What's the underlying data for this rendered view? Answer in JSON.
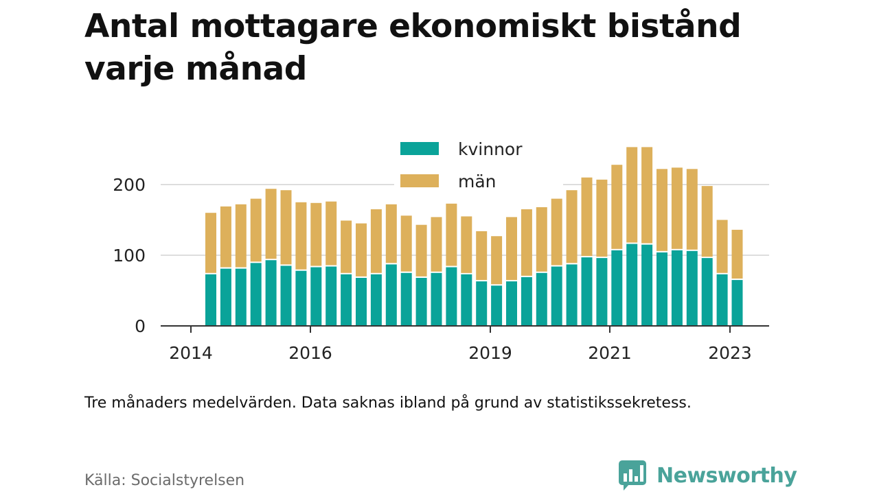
{
  "title": "Antal mottagare ekonomiskt bistånd varje månad",
  "note": "Tre månaders medelvärden. Data saknas ibland på grund av statistikssekretess.",
  "source": "Källa: Socialstyrelsen",
  "brand": {
    "name": "Newsworthy",
    "logo_icon": "bar-chart-speech-bubble-icon"
  },
  "colors": {
    "kvinnor": "#0aa399",
    "man": "#ddb05b",
    "axis": "#333333",
    "grid": "#dddddd",
    "brand": "#4aa39a"
  },
  "chart_data": {
    "type": "bar",
    "stacked": true,
    "x_tick_labels": [
      "2014",
      "2016",
      "2019",
      "2021",
      "2023"
    ],
    "y_tick_labels": [
      "0",
      "100",
      "200"
    ],
    "ylim": [
      0,
      260
    ],
    "grid": true,
    "legend_position": "top-center",
    "series": [
      {
        "name": "kvinnor",
        "values": [
          73,
          81,
          81,
          89,
          93,
          85,
          78,
          83,
          84,
          73,
          68,
          73,
          87,
          75,
          68,
          75,
          83,
          73,
          63,
          57,
          63,
          69,
          75,
          84,
          87,
          97,
          96,
          107,
          116,
          115,
          104,
          107,
          106,
          96,
          73,
          65
        ]
      },
      {
        "name": "män",
        "values": [
          87,
          88,
          91,
          91,
          101,
          107,
          97,
          91,
          92,
          76,
          77,
          92,
          85,
          81,
          75,
          79,
          90,
          82,
          71,
          70,
          91,
          96,
          93,
          96,
          105,
          113,
          111,
          121,
          137,
          138,
          118,
          117,
          116,
          102,
          77,
          71
        ]
      }
    ]
  }
}
